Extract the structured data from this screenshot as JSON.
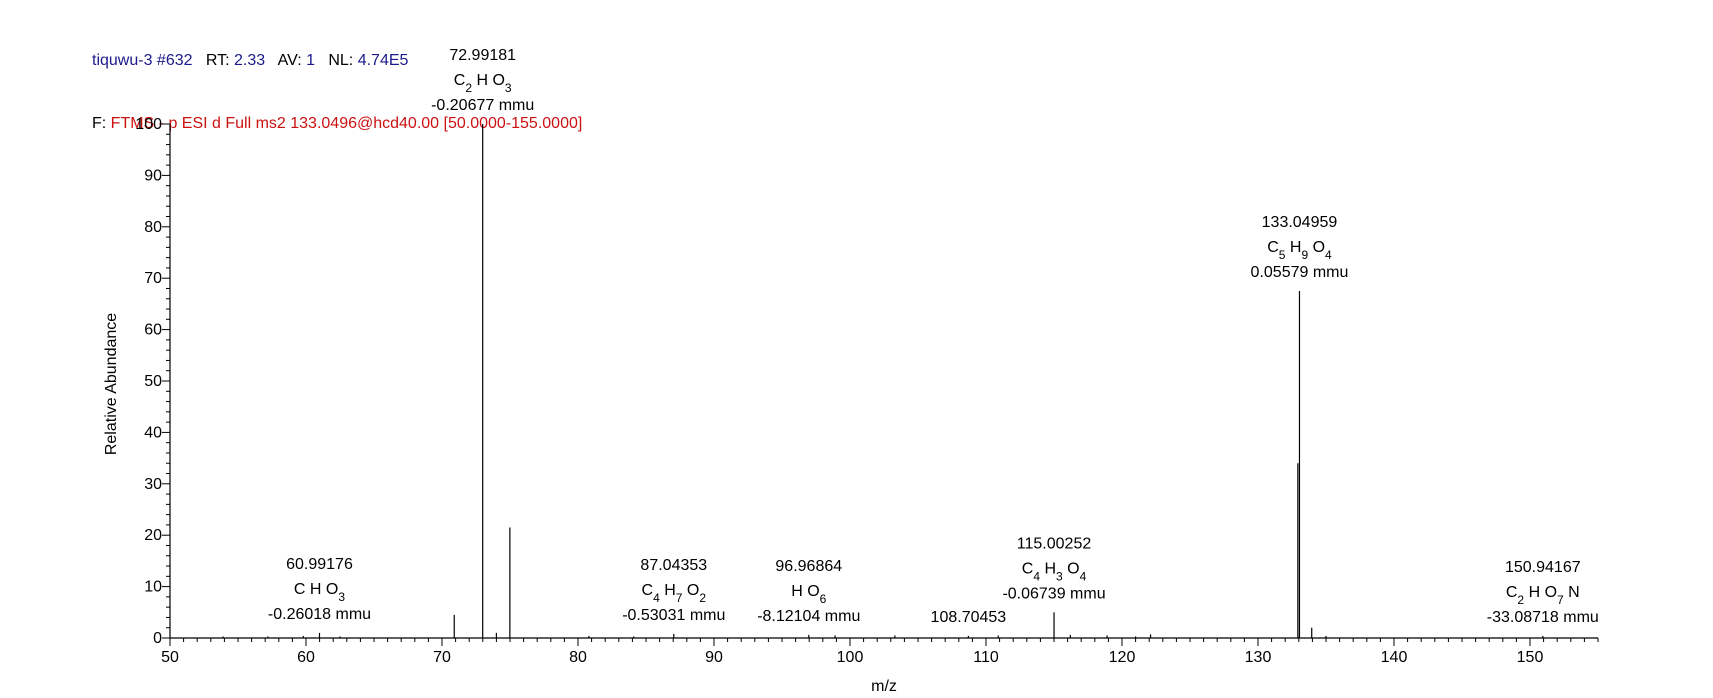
{
  "header": {
    "line1": {
      "sample": "tiquwu-3 #632",
      "rt_label": "RT:",
      "rt_value": "2.33",
      "av_label": "AV:",
      "av_value": "1",
      "nl_label": "NL:",
      "nl_value": "4.74E5"
    },
    "line2": {
      "prefix": "F:",
      "filter": "FTMS - p ESI d Full ms2 133.0496@hcd40.00 [50.0000-155.0000]"
    }
  },
  "colors": {
    "header_blue": "#1a1a8c",
    "filter_red": "#cc1111",
    "peaks": "#000000"
  },
  "chart_data": {
    "type": "bar",
    "xlabel": "m/z",
    "ylabel": "Relative Abundance",
    "xlim": [
      50,
      155
    ],
    "ylim": [
      0,
      100
    ],
    "x_ticks": [
      50,
      60,
      70,
      80,
      90,
      100,
      110,
      120,
      130,
      140,
      150
    ],
    "y_ticks": [
      0,
      10,
      20,
      30,
      40,
      50,
      60,
      70,
      80,
      90,
      100
    ],
    "grid": false,
    "peaks": [
      {
        "mz": 53.9,
        "intensity": 0.3
      },
      {
        "mz": 57.2,
        "intensity": 0.3
      },
      {
        "mz": 59.8,
        "intensity": 0.4
      },
      {
        "mz": 60.99176,
        "intensity": 1.0
      },
      {
        "mz": 62.5,
        "intensity": 0.3
      },
      {
        "mz": 70.9,
        "intensity": 4.5
      },
      {
        "mz": 72.99181,
        "intensity": 100
      },
      {
        "mz": 74.0,
        "intensity": 1.0
      },
      {
        "mz": 74.99,
        "intensity": 21.5
      },
      {
        "mz": 80.8,
        "intensity": 0.4
      },
      {
        "mz": 84.1,
        "intensity": 0.3
      },
      {
        "mz": 87.04353,
        "intensity": 0.8
      },
      {
        "mz": 96.96864,
        "intensity": 0.6
      },
      {
        "mz": 98.9,
        "intensity": 0.5
      },
      {
        "mz": 103.3,
        "intensity": 0.5
      },
      {
        "mz": 108.70453,
        "intensity": 0.4
      },
      {
        "mz": 110.9,
        "intensity": 0.5
      },
      {
        "mz": 115.00252,
        "intensity": 5.0
      },
      {
        "mz": 116.2,
        "intensity": 0.6
      },
      {
        "mz": 118.9,
        "intensity": 0.5
      },
      {
        "mz": 121.0,
        "intensity": 0.3
      },
      {
        "mz": 122.1,
        "intensity": 0.7
      },
      {
        "mz": 132.93,
        "intensity": 34.0
      },
      {
        "mz": 133.04959,
        "intensity": 67.5
      },
      {
        "mz": 133.95,
        "intensity": 2.0
      },
      {
        "mz": 135.0,
        "intensity": 0.4
      },
      {
        "mz": 150.94167,
        "intensity": 0.4
      }
    ],
    "annotations": [
      {
        "mz": 72.99181,
        "intensity": 100,
        "lines": [
          "72.99181",
          "C2 H O3",
          "-0.20677 mmu"
        ]
      },
      {
        "mz": 133.04959,
        "intensity": 67.5,
        "lines": [
          "133.04959",
          "C5 H9 O4",
          "0.05579 mmu"
        ]
      },
      {
        "mz": 60.99176,
        "intensity": 1.0,
        "lines": [
          "60.99176",
          "C H O3",
          "-0.26018 mmu"
        ]
      },
      {
        "mz": 87.04353,
        "intensity": 0.8,
        "lines": [
          "87.04353",
          "C4 H7 O2",
          "-0.53031 mmu"
        ]
      },
      {
        "mz": 96.96864,
        "intensity": 0.6,
        "lines": [
          "96.96864",
          "H O6",
          "-8.12104 mmu"
        ]
      },
      {
        "mz": 108.70453,
        "intensity": 0.4,
        "lines": [
          "108.70453"
        ]
      },
      {
        "mz": 115.00252,
        "intensity": 5.0,
        "lines": [
          "115.00252",
          "C4 H3 O4",
          "-0.06739 mmu"
        ]
      },
      {
        "mz": 150.94167,
        "intensity": 0.4,
        "lines": [
          "150.94167",
          "C2 H O7 N",
          "-33.08718 mmu"
        ]
      }
    ]
  }
}
